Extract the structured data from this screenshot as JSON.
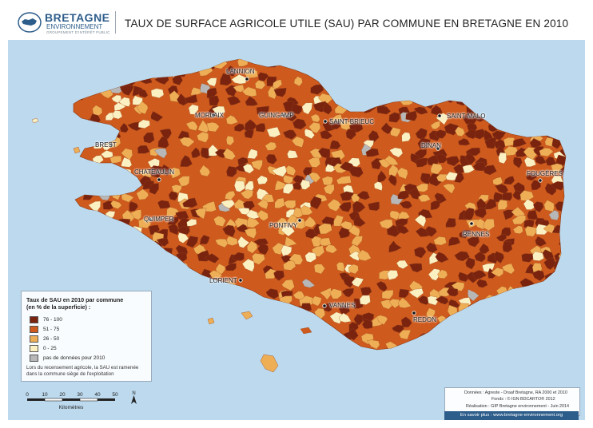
{
  "header": {
    "logo_brand": "BRETAGNE",
    "logo_sub": "ENVIRONNEMENT",
    "logo_tagline": "GROUPEMENT D'INTÉRÊT PUBLIC",
    "title": "TAUX DE SURFACE AGRICOLE UTILE (SAU) PAR COMMUNE EN BRETAGNE EN 2010"
  },
  "map": {
    "colors": {
      "sea": "#bcd9ee",
      "class_76_100": "#7a2410",
      "class_51_75": "#cf5a1d",
      "class_26_50": "#eeae56",
      "class_0_25": "#fbf0c2",
      "no_data": "#b7b7b7"
    },
    "cities": [
      "LANNION",
      "MORLAIX",
      "GUINGAMP",
      "SAINT-BRIEUC",
      "SAINT-MALO",
      "BREST",
      "DINAN",
      "FOUGÈRES",
      "CHATEAULIN",
      "QUIMPER",
      "PONTIVY",
      "RENNES",
      "LORIENT",
      "VANNES",
      "REDON"
    ]
  },
  "legend": {
    "title_line1": "Taux de SAU en 2010 par commune",
    "title_line2": "(en % de la superficie) :",
    "classes": [
      "76 - 100",
      "51 - 75",
      "26 - 50",
      "0 - 25",
      "pas de données pour 2010"
    ],
    "note_line1": "Lors du recensement agricole, la SAU est ramenée",
    "note_line2": "dans la commune siège de l'exploitation"
  },
  "scale": {
    "ticks": [
      "0",
      "10",
      "20",
      "30",
      "40",
      "50"
    ],
    "unit": "Kilomètres",
    "north": "N"
  },
  "sources": {
    "line1": "Données : Agreste - Draaf Bretagne, RA 2000 et 2010",
    "line2": "Fonds : © IGN BDCARTO® 2012",
    "line3": "Réalisation : GIP Bretagne environnement - Juin 2014",
    "link": "En savoir plus : www.bretagne-environnement.org"
  }
}
